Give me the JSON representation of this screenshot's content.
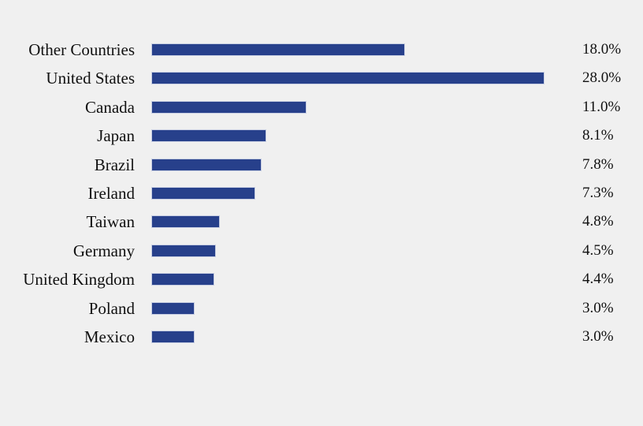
{
  "chart_data": {
    "type": "bar",
    "orientation": "horizontal",
    "title": "",
    "xlabel": "",
    "ylabel": "",
    "grid": false,
    "legend": null,
    "bar_color": "#27408b",
    "background": "#f0f0f0",
    "categories": [
      "Other Countries",
      "United States",
      "Canada",
      "Japan",
      "Brazil",
      "Ireland",
      "Taiwan",
      "Germany",
      "United Kingdom",
      "Poland",
      "Mexico"
    ],
    "values": [
      18.0,
      28.0,
      11.0,
      8.1,
      7.8,
      7.3,
      4.8,
      4.5,
      4.4,
      3.0,
      3.0
    ],
    "value_labels": [
      "18.0%",
      "28.0%",
      "11.0%",
      "8.1%",
      "7.8%",
      "7.3%",
      "4.8%",
      "4.5%",
      "4.4%",
      "3.0%",
      "3.0%"
    ],
    "xlim": [
      0,
      28
    ]
  }
}
